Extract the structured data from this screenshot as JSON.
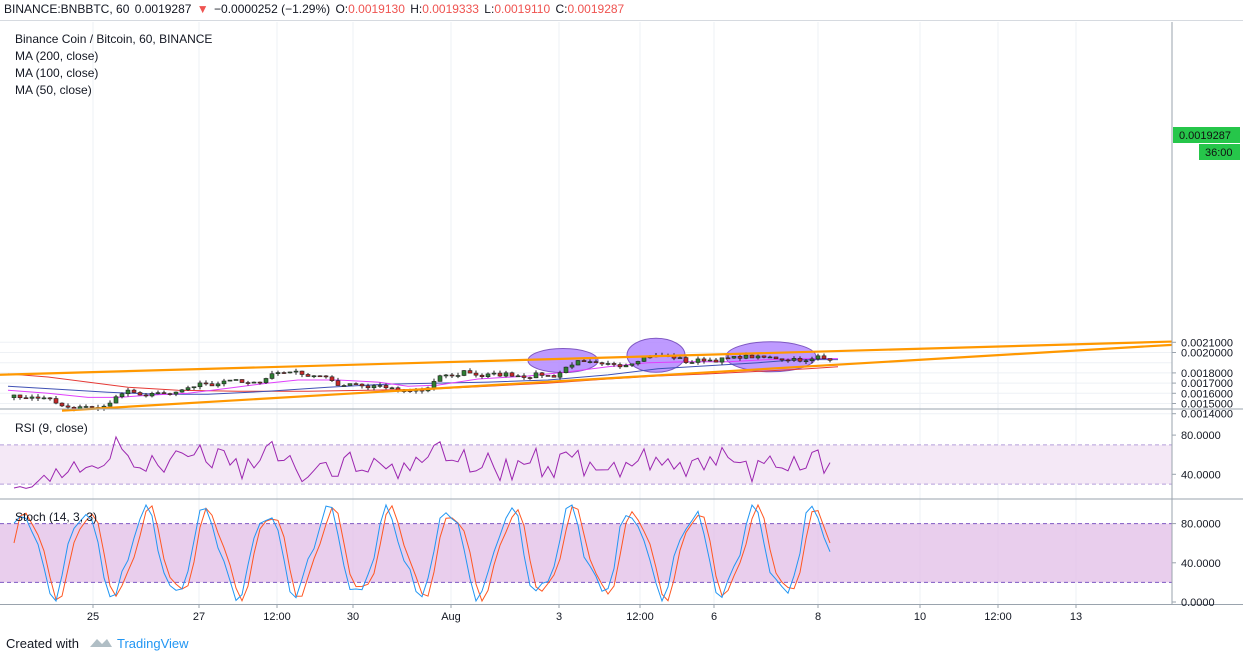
{
  "header": {
    "symbol": "BINANCE:BNBBTC, 60",
    "last": "0.0019287",
    "change_arrow": "▼",
    "change": "−0.0000252 (−1.29%)",
    "o_label": "O:",
    "o": "0.0019130",
    "h_label": "H:",
    "h": "0.0019333",
    "l_label": "L:",
    "l": "0.0019110",
    "c_label": "C:",
    "c": "0.0019287"
  },
  "legend": {
    "title": "Binance Coin / Bitcoin, 60, BINANCE",
    "ma200": "MA (200, close)",
    "ma100": "MA (100, close)",
    "ma50": "MA (50, close)"
  },
  "price_badge": "0.0019287",
  "time_badge": "36:00",
  "rsi_label": "RSI (9, close)",
  "stoch_label": "Stoch (14, 3, 3)",
  "footer": {
    "created_with": "Created with",
    "brand": "TradingView"
  },
  "colors": {
    "up": "#26a69a",
    "candle_up_fill": "#2e7d32",
    "down": "#c62828",
    "ma200": "#e53935",
    "ma100": "#3f51b5",
    "ma50": "#e040fb",
    "trendline": "#ff9800",
    "ellipse_fill": "#b388ff",
    "ellipse_stroke": "#7e57c2",
    "rsi_line": "#9c27b0",
    "stoch_k": "#2196f3",
    "stoch_d": "#ff5722"
  },
  "chart_data": [
    {
      "type": "candlestick",
      "title": "Binance Coin / Bitcoin, 60, BINANCE",
      "x_ticks": [
        "25",
        "27",
        "12:00",
        "30",
        "Aug",
        "3",
        "12:00",
        "6",
        "8",
        "10",
        "12:00",
        "13"
      ],
      "y_ticks": [
        "0.0021000",
        "0.0020000",
        "0.0018000",
        "0.0017000",
        "0.0016000",
        "0.0015000",
        "0.0014000"
      ],
      "ylim": [
        0.00139,
        0.00216
      ],
      "close_path": [
        [
          0,
          0.001575
        ],
        [
          10,
          0.001565
        ],
        [
          20,
          0.00156
        ],
        [
          30,
          0.00155
        ],
        [
          35,
          0.001565
        ],
        [
          42,
          0.00154
        ],
        [
          50,
          0.00148
        ],
        [
          58,
          0.00147
        ],
        [
          64,
          0.00143
        ],
        [
          70,
          0.00145
        ],
        [
          78,
          0.00148
        ],
        [
          86,
          0.00146
        ],
        [
          92,
          0.00144
        ],
        [
          98,
          0.00148
        ],
        [
          104,
          0.00154
        ],
        [
          112,
          0.00158
        ],
        [
          118,
          0.00163
        ],
        [
          124,
          0.00159
        ],
        [
          130,
          0.00161
        ],
        [
          136,
          0.00157
        ],
        [
          142,
          0.00158
        ],
        [
          150,
          0.0016
        ],
        [
          158,
          0.00159
        ],
        [
          166,
          0.00159
        ],
        [
          174,
          0.00162
        ],
        [
          180,
          0.00166
        ],
        [
          186,
          0.00167
        ],
        [
          192,
          0.00169
        ],
        [
          198,
          0.0017
        ],
        [
          206,
          0.00168
        ],
        [
          212,
          0.00171
        ],
        [
          218,
          0.00173
        ],
        [
          224,
          0.00174
        ],
        [
          230,
          0.00171
        ],
        [
          236,
          0.0017
        ],
        [
          244,
          0.00169
        ],
        [
          250,
          0.00171
        ],
        [
          256,
          0.00174
        ],
        [
          262,
          0.00178
        ],
        [
          268,
          0.00181
        ],
        [
          274,
          0.00179
        ],
        [
          280,
          0.00183
        ],
        [
          286,
          0.0018
        ],
        [
          292,
          0.00181
        ],
        [
          300,
          0.00177
        ],
        [
          308,
          0.00178
        ],
        [
          316,
          0.00175
        ],
        [
          322,
          0.00174
        ],
        [
          328,
          0.00169
        ],
        [
          336,
          0.00168
        ],
        [
          344,
          0.00171
        ],
        [
          352,
          0.00168
        ],
        [
          360,
          0.00166
        ],
        [
          368,
          0.00168
        ],
        [
          374,
          0.00167
        ],
        [
          380,
          0.00166
        ],
        [
          386,
          0.00163
        ],
        [
          392,
          0.00162
        ],
        [
          398,
          0.00161
        ],
        [
          404,
          0.00162
        ],
        [
          410,
          0.00163
        ],
        [
          416,
          0.00162
        ],
        [
          422,
          0.00167
        ],
        [
          428,
          0.00173
        ],
        [
          434,
          0.00177
        ],
        [
          440,
          0.00179
        ],
        [
          446,
          0.00175
        ],
        [
          452,
          0.0018
        ],
        [
          458,
          0.00183
        ],
        [
          464,
          0.00179
        ],
        [
          470,
          0.00178
        ],
        [
          476,
          0.00176
        ],
        [
          482,
          0.00179
        ],
        [
          490,
          0.00178
        ],
        [
          498,
          0.00179
        ],
        [
          506,
          0.00178
        ],
        [
          514,
          0.00177
        ],
        [
          520,
          0.00176
        ],
        [
          526,
          0.00178
        ],
        [
          532,
          0.00179
        ],
        [
          540,
          0.00177
        ],
        [
          548,
          0.00177
        ],
        [
          554,
          0.00182
        ],
        [
          560,
          0.00187
        ],
        [
          566,
          0.0019
        ],
        [
          572,
          0.00191
        ],
        [
          578,
          0.00189
        ],
        [
          584,
          0.0019
        ],
        [
          590,
          0.00188
        ],
        [
          596,
          0.00187
        ],
        [
          602,
          0.00189
        ],
        [
          608,
          0.00189
        ],
        [
          614,
          0.00187
        ],
        [
          620,
          0.00189
        ],
        [
          626,
          0.00191
        ],
        [
          632,
          0.00194
        ],
        [
          638,
          0.00196
        ],
        [
          644,
          0.00197
        ],
        [
          650,
          0.00196
        ],
        [
          656,
          0.00197
        ],
        [
          662,
          0.00196
        ],
        [
          668,
          0.00195
        ],
        [
          674,
          0.00193
        ],
        [
          680,
          0.0019
        ],
        [
          686,
          0.00191
        ],
        [
          692,
          0.00193
        ],
        [
          700,
          0.00193
        ],
        [
          706,
          0.00192
        ],
        [
          712,
          0.00193
        ],
        [
          718,
          0.00194
        ],
        [
          724,
          0.00194
        ],
        [
          730,
          0.00196
        ],
        [
          736,
          0.00196
        ],
        [
          742,
          0.00196
        ],
        [
          750,
          0.00195
        ],
        [
          758,
          0.00195
        ],
        [
          766,
          0.00195
        ],
        [
          772,
          0.00194
        ],
        [
          778,
          0.00193
        ],
        [
          786,
          0.00194
        ],
        [
          792,
          0.00193
        ],
        [
          798,
          0.00191
        ],
        [
          804,
          0.00193
        ],
        [
          810,
          0.00196
        ],
        [
          816,
          0.00194
        ],
        [
          822,
          0.00194
        ],
        [
          830,
          0.00192
        ]
      ],
      "ma50_path": [
        [
          0,
          0.00163
        ],
        [
          40,
          0.0016
        ],
        [
          80,
          0.00156
        ],
        [
          110,
          0.00156
        ],
        [
          140,
          0.00158
        ],
        [
          180,
          0.0016
        ],
        [
          220,
          0.00165
        ],
        [
          260,
          0.0017
        ],
        [
          290,
          0.00173
        ],
        [
          330,
          0.00173
        ],
        [
          370,
          0.00171
        ],
        [
          400,
          0.00167
        ],
        [
          430,
          0.00168
        ],
        [
          470,
          0.00174
        ],
        [
          520,
          0.00177
        ],
        [
          560,
          0.00181
        ],
        [
          600,
          0.00186
        ],
        [
          640,
          0.0019
        ],
        [
          680,
          0.00191
        ],
        [
          720,
          0.00191
        ],
        [
          760,
          0.00193
        ],
        [
          800,
          0.00194
        ],
        [
          830,
          0.00194
        ]
      ],
      "ma100_path": [
        [
          0,
          0.00167
        ],
        [
          50,
          0.00164
        ],
        [
          100,
          0.00161
        ],
        [
          150,
          0.00159
        ],
        [
          200,
          0.00159
        ],
        [
          260,
          0.00162
        ],
        [
          320,
          0.00166
        ],
        [
          380,
          0.00169
        ],
        [
          430,
          0.0017
        ],
        [
          480,
          0.00171
        ],
        [
          540,
          0.00173
        ],
        [
          600,
          0.00178
        ],
        [
          650,
          0.00184
        ],
        [
          700,
          0.00187
        ],
        [
          750,
          0.0019
        ],
        [
          790,
          0.00193
        ],
        [
          830,
          0.00193
        ]
      ],
      "ma200_path": [
        [
          0,
          0.00179
        ],
        [
          40,
          0.00176
        ],
        [
          80,
          0.00171
        ],
        [
          120,
          0.00166
        ],
        [
          170,
          0.00163
        ],
        [
          230,
          0.00162
        ],
        [
          300,
          0.00162
        ],
        [
          360,
          0.00163
        ],
        [
          420,
          0.00164
        ],
        [
          480,
          0.00167
        ],
        [
          540,
          0.0017
        ],
        [
          600,
          0.00174
        ],
        [
          650,
          0.00177
        ],
        [
          700,
          0.00179
        ],
        [
          760,
          0.00182
        ],
        [
          800,
          0.00184
        ],
        [
          830,
          0.00186
        ]
      ],
      "trendlines": [
        {
          "from": [
            0,
            0.001782
          ],
          "to": [
            1172,
            0.002107
          ]
        },
        {
          "from": [
            62,
            0.00143
          ],
          "to": [
            1172,
            0.002075
          ]
        }
      ],
      "ellipses": [
        [
          563,
          0.001921
        ],
        [
          656,
          0.001973
        ],
        [
          771,
          0.001958
        ]
      ]
    },
    {
      "type": "line",
      "title": "RSI (9, close)",
      "y_ticks": [
        "80.0000",
        "40.0000"
      ],
      "ylim": [
        0,
        100
      ],
      "band": [
        30,
        70
      ]
    },
    {
      "type": "line",
      "title": "Stoch (14, 3, 3)",
      "y_ticks": [
        "80.0000",
        "40.0000",
        "0.0000"
      ],
      "ylim": [
        0,
        100
      ],
      "band": [
        20,
        80
      ]
    }
  ]
}
